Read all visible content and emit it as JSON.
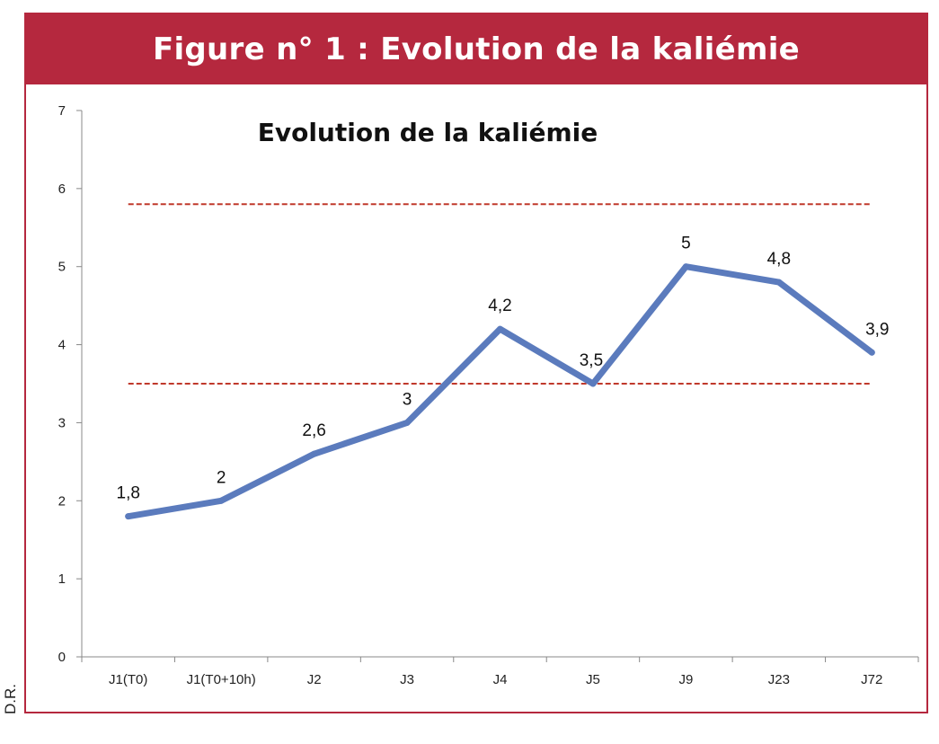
{
  "figure": {
    "banner_title": "Figure n° 1 : Evolution de la kaliémie",
    "credit": "D.R."
  },
  "colors": {
    "banner": "#b5283e",
    "series_line": "#5b7bbd",
    "reference_lines": "#c0392b"
  },
  "chart_data": {
    "type": "line",
    "title": "Evolution de la kaliémie",
    "xlabel": "",
    "ylabel": "",
    "categories": [
      "J1(T0)",
      "J1(T0+10h)",
      "J2",
      "J3",
      "J4",
      "J5",
      "J9",
      "J23",
      "J72"
    ],
    "series": [
      {
        "values": [
          1.8,
          2,
          2.6,
          3,
          4.2,
          3.5,
          5,
          4.8,
          3.9
        ]
      }
    ],
    "data_labels": [
      "1,8",
      "2",
      "2,6",
      "3",
      "4,2",
      "3,5",
      "5",
      "4,8",
      "3,9"
    ],
    "reference_lines": [
      5.8,
      3.5
    ],
    "ylim": [
      0,
      7
    ],
    "yticks": [
      "0",
      "1",
      "2",
      "3",
      "4",
      "5",
      "6",
      "7"
    ],
    "grid": false,
    "legend": "none"
  }
}
